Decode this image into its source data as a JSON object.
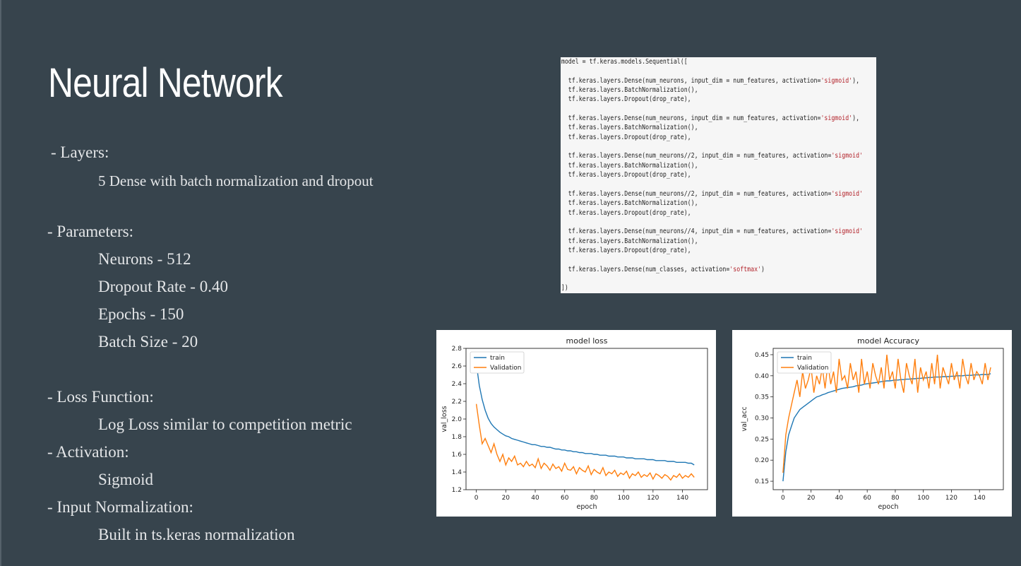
{
  "slide": {
    "title": "Neural Network",
    "layers_header": " - Layers:",
    "layers_detail": "5 Dense with batch normalization and dropout",
    "params_header": "- Parameters:",
    "params": [
      "Neurons - 512",
      "Dropout Rate - 0.40",
      "Epochs - 150",
      "Batch Size - 20"
    ],
    "loss_header": "- Loss Function:",
    "loss_detail": "Log Loss similar to competition metric",
    "activation_header": "- Activation:",
    "activation_detail": "Sigmoid",
    "input_norm_header": "- Input Normalization:",
    "input_norm_detail": "Built in ts.keras normalization"
  },
  "code": {
    "lines": [
      "model = tf.keras.models.Sequential([",
      "",
      "  tf.keras.layers.Dense(num_neurons, input_dim = num_features, activation='sigmoid'),",
      "  tf.keras.layers.BatchNormalization(),",
      "  tf.keras.layers.Dropout(drop_rate),",
      "",
      "  tf.keras.layers.Dense(num_neurons, input_dim = num_features, activation='sigmoid'),",
      "  tf.keras.layers.BatchNormalization(),",
      "  tf.keras.layers.Dropout(drop_rate),",
      "",
      "  tf.keras.layers.Dense(num_neurons//2, input_dim = num_features, activation='sigmoid'",
      "  tf.keras.layers.BatchNormalization(),",
      "  tf.keras.layers.Dropout(drop_rate),",
      "",
      "  tf.keras.layers.Dense(num_neurons//2, input_dim = num_features, activation='sigmoid'",
      "  tf.keras.layers.BatchNormalization(),",
      "  tf.keras.layers.Dropout(drop_rate),",
      "",
      "  tf.keras.layers.Dense(num_neurons//4, input_dim = num_features, activation='sigmoid'",
      "  tf.keras.layers.BatchNormalization(),",
      "  tf.keras.layers.Dropout(drop_rate),",
      "",
      "  tf.keras.layers.Dense(num_classes, activation='softmax')",
      "",
      "])"
    ]
  },
  "chart_data": [
    {
      "type": "line",
      "title": "model loss",
      "xlabel": "epoch",
      "ylabel": "val_loss",
      "xlim": [
        -7,
        157
      ],
      "ylim": [
        1.2,
        2.8
      ],
      "xticks": [
        0,
        20,
        40,
        60,
        80,
        100,
        120,
        140
      ],
      "yticks": [
        1.2,
        1.4,
        1.6,
        1.8,
        2.0,
        2.2,
        2.4,
        2.6,
        2.8
      ],
      "ytick_labels": [
        "1.2",
        "1.4",
        "1.6",
        "1.8",
        "2.0",
        "2.2",
        "2.4",
        "2.6",
        "2.8"
      ],
      "legend": "upper-left",
      "series": [
        {
          "name": "train",
          "color": "#1f77b4",
          "x": [
            0,
            2,
            4,
            6,
            8,
            10,
            12,
            14,
            16,
            18,
            20,
            22,
            24,
            26,
            28,
            30,
            32,
            34,
            36,
            38,
            40,
            42,
            44,
            46,
            48,
            50,
            52,
            54,
            56,
            58,
            60,
            62,
            64,
            66,
            68,
            70,
            72,
            74,
            76,
            78,
            80,
            82,
            84,
            86,
            88,
            90,
            92,
            94,
            96,
            98,
            100,
            102,
            104,
            106,
            108,
            110,
            112,
            114,
            116,
            118,
            120,
            122,
            124,
            126,
            128,
            130,
            132,
            134,
            136,
            138,
            140,
            142,
            144,
            146,
            148
          ],
          "values": [
            2.63,
            2.38,
            2.22,
            2.1,
            2.01,
            1.95,
            1.91,
            1.88,
            1.85,
            1.83,
            1.81,
            1.8,
            1.78,
            1.77,
            1.76,
            1.75,
            1.74,
            1.73,
            1.72,
            1.71,
            1.71,
            1.7,
            1.69,
            1.69,
            1.68,
            1.68,
            1.67,
            1.66,
            1.66,
            1.65,
            1.65,
            1.64,
            1.64,
            1.63,
            1.63,
            1.62,
            1.62,
            1.61,
            1.61,
            1.61,
            1.6,
            1.6,
            1.59,
            1.59,
            1.59,
            1.58,
            1.58,
            1.58,
            1.57,
            1.57,
            1.57,
            1.56,
            1.56,
            1.56,
            1.55,
            1.55,
            1.55,
            1.55,
            1.54,
            1.54,
            1.54,
            1.53,
            1.53,
            1.53,
            1.53,
            1.52,
            1.52,
            1.52,
            1.51,
            1.51,
            1.51,
            1.51,
            1.5,
            1.5,
            1.48
          ]
        },
        {
          "name": "Validation",
          "color": "#ff7f0e",
          "x": [
            0,
            2,
            4,
            6,
            8,
            10,
            12,
            14,
            16,
            18,
            20,
            22,
            24,
            26,
            28,
            30,
            32,
            34,
            36,
            38,
            40,
            42,
            44,
            46,
            48,
            50,
            52,
            54,
            56,
            58,
            60,
            62,
            64,
            66,
            68,
            70,
            72,
            74,
            76,
            78,
            80,
            82,
            84,
            86,
            88,
            90,
            92,
            94,
            96,
            98,
            100,
            102,
            104,
            106,
            108,
            110,
            112,
            114,
            116,
            118,
            120,
            122,
            124,
            126,
            128,
            130,
            132,
            134,
            136,
            138,
            140,
            142,
            144,
            146,
            148
          ],
          "values": [
            2.17,
            1.93,
            1.72,
            1.78,
            1.7,
            1.62,
            1.72,
            1.6,
            1.52,
            1.6,
            1.48,
            1.56,
            1.52,
            1.58,
            1.48,
            1.5,
            1.46,
            1.52,
            1.47,
            1.49,
            1.45,
            1.55,
            1.44,
            1.5,
            1.47,
            1.42,
            1.49,
            1.44,
            1.46,
            1.41,
            1.5,
            1.43,
            1.42,
            1.46,
            1.38,
            1.45,
            1.42,
            1.4,
            1.47,
            1.37,
            1.43,
            1.4,
            1.38,
            1.45,
            1.36,
            1.4,
            1.38,
            1.42,
            1.35,
            1.39,
            1.37,
            1.41,
            1.33,
            1.38,
            1.36,
            1.4,
            1.34,
            1.37,
            1.35,
            1.39,
            1.32,
            1.38,
            1.36,
            1.33,
            1.37,
            1.35,
            1.31,
            1.36,
            1.34,
            1.38,
            1.33,
            1.36,
            1.34,
            1.38,
            1.34
          ]
        }
      ]
    },
    {
      "type": "line",
      "title": "model Accuracy",
      "xlabel": "epoch",
      "ylabel": "val_acc",
      "xlim": [
        -7,
        157
      ],
      "ylim": [
        0.13,
        0.465
      ],
      "xticks": [
        0,
        20,
        40,
        60,
        80,
        100,
        120,
        140
      ],
      "yticks": [
        0.15,
        0.2,
        0.25,
        0.3,
        0.35,
        0.4,
        0.45
      ],
      "ytick_labels": [
        "0.15",
        "0.20",
        "0.25",
        "0.30",
        "0.35",
        "0.40",
        "0.45"
      ],
      "legend": "upper-left",
      "series": [
        {
          "name": "train",
          "color": "#1f77b4",
          "x": [
            0,
            2,
            4,
            6,
            8,
            10,
            12,
            14,
            16,
            18,
            20,
            22,
            24,
            26,
            28,
            30,
            32,
            34,
            36,
            38,
            40,
            42,
            44,
            46,
            48,
            50,
            52,
            54,
            56,
            58,
            60,
            62,
            64,
            66,
            68,
            70,
            72,
            74,
            76,
            78,
            80,
            82,
            84,
            86,
            88,
            90,
            92,
            94,
            96,
            98,
            100,
            102,
            104,
            106,
            108,
            110,
            112,
            114,
            116,
            118,
            120,
            122,
            124,
            126,
            128,
            130,
            132,
            134,
            136,
            138,
            140,
            142,
            144,
            146,
            148
          ],
          "values": [
            0.15,
            0.22,
            0.26,
            0.28,
            0.3,
            0.31,
            0.32,
            0.325,
            0.33,
            0.335,
            0.34,
            0.345,
            0.35,
            0.352,
            0.355,
            0.357,
            0.36,
            0.362,
            0.364,
            0.366,
            0.368,
            0.37,
            0.371,
            0.372,
            0.373,
            0.374,
            0.376,
            0.377,
            0.378,
            0.38,
            0.381,
            0.382,
            0.383,
            0.384,
            0.385,
            0.386,
            0.387,
            0.388,
            0.388,
            0.389,
            0.39,
            0.39,
            0.391,
            0.391,
            0.392,
            0.392,
            0.393,
            0.393,
            0.394,
            0.394,
            0.395,
            0.395,
            0.396,
            0.396,
            0.397,
            0.397,
            0.397,
            0.398,
            0.398,
            0.398,
            0.399,
            0.399,
            0.4,
            0.4,
            0.4,
            0.401,
            0.401,
            0.401,
            0.402,
            0.402,
            0.402,
            0.403,
            0.403,
            0.403,
            0.405
          ]
        },
        {
          "name": "Validation",
          "color": "#ff7f0e",
          "x": [
            0,
            2,
            4,
            6,
            8,
            10,
            12,
            14,
            16,
            18,
            20,
            22,
            24,
            26,
            28,
            30,
            32,
            34,
            36,
            38,
            40,
            42,
            44,
            46,
            48,
            50,
            52,
            54,
            56,
            58,
            60,
            62,
            64,
            66,
            68,
            70,
            72,
            74,
            76,
            78,
            80,
            82,
            84,
            86,
            88,
            90,
            92,
            94,
            96,
            98,
            100,
            102,
            104,
            106,
            108,
            110,
            112,
            114,
            116,
            118,
            120,
            122,
            124,
            126,
            128,
            130,
            132,
            134,
            136,
            138,
            140,
            142,
            144,
            146,
            148
          ],
          "values": [
            0.17,
            0.26,
            0.3,
            0.33,
            0.36,
            0.39,
            0.35,
            0.41,
            0.37,
            0.39,
            0.42,
            0.36,
            0.4,
            0.38,
            0.42,
            0.37,
            0.43,
            0.38,
            0.41,
            0.36,
            0.44,
            0.39,
            0.4,
            0.37,
            0.43,
            0.39,
            0.41,
            0.36,
            0.44,
            0.38,
            0.41,
            0.37,
            0.43,
            0.4,
            0.38,
            0.42,
            0.37,
            0.45,
            0.39,
            0.41,
            0.37,
            0.44,
            0.39,
            0.36,
            0.43,
            0.4,
            0.38,
            0.44,
            0.36,
            0.42,
            0.39,
            0.41,
            0.37,
            0.43,
            0.38,
            0.45,
            0.37,
            0.42,
            0.4,
            0.38,
            0.43,
            0.39,
            0.41,
            0.37,
            0.44,
            0.4,
            0.38,
            0.43,
            0.39,
            0.41,
            0.4,
            0.38,
            0.43,
            0.39,
            0.42
          ]
        }
      ]
    }
  ]
}
